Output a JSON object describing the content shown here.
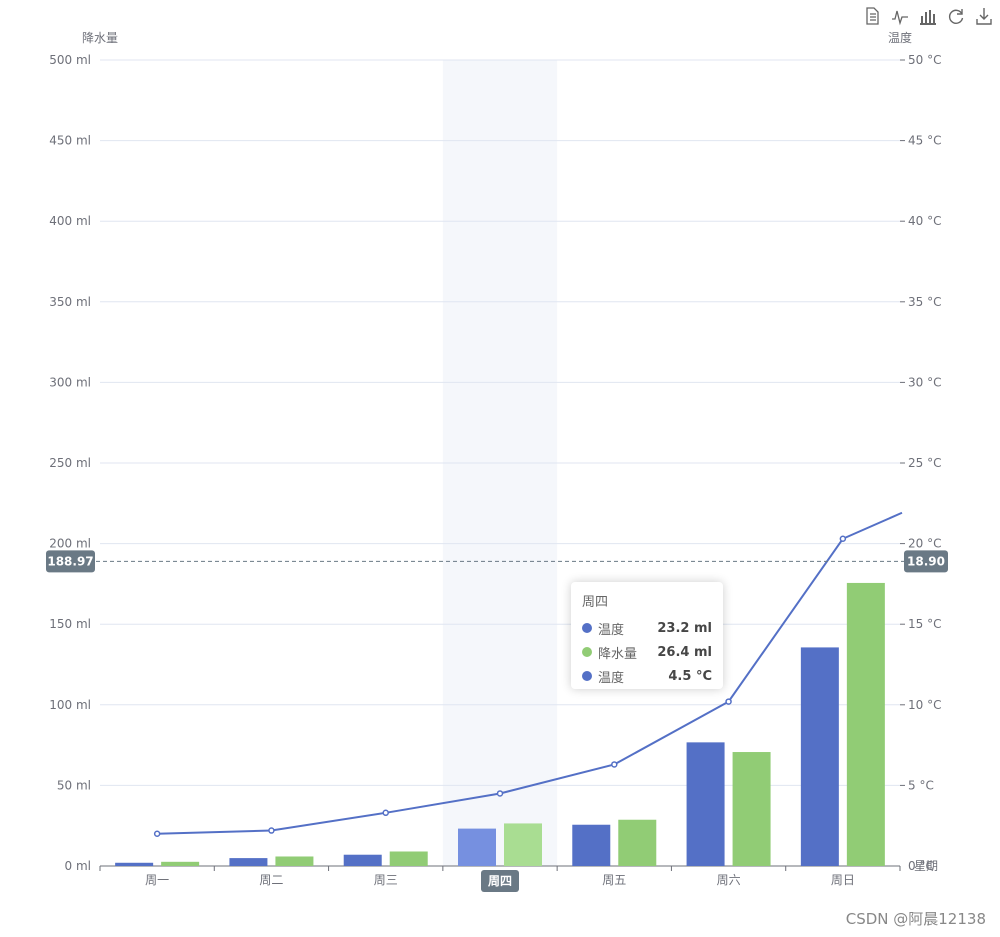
{
  "toolbox": {
    "icons": [
      "data-view-icon",
      "line-chart-icon",
      "bar-chart-icon",
      "restore-icon",
      "save-image-icon"
    ]
  },
  "chart_data": {
    "type": "bar",
    "categories": [
      "周一",
      "周二",
      "周三",
      "周四",
      "周五",
      "周六",
      "周日"
    ],
    "series": [
      {
        "name": "温度",
        "type": "bar",
        "axis": "left",
        "color": "#5470c6",
        "values": [
          2.0,
          4.9,
          7.0,
          23.2,
          25.6,
          76.7,
          135.6
        ]
      },
      {
        "name": "降水量",
        "type": "bar",
        "axis": "left",
        "color": "#91cc75",
        "values": [
          2.6,
          5.9,
          9.0,
          26.4,
          28.7,
          70.7,
          175.6
        ]
      },
      {
        "name": "温度",
        "type": "line",
        "axis": "right",
        "color": "#5470c6",
        "values": [
          2.0,
          2.2,
          3.3,
          4.5,
          6.3,
          10.2,
          20.3
        ]
      }
    ],
    "left_axis": {
      "name": "降水量",
      "min": 0,
      "max": 500,
      "interval": 50,
      "unit": " ml"
    },
    "right_axis": {
      "name": "温度",
      "min": 0,
      "max": 50,
      "interval": 5,
      "unit": " °C"
    },
    "x_axis_name": "星期",
    "highlighted_category": "周四",
    "crosshair": {
      "left_label": "188.97",
      "right_label": "18.90"
    },
    "tooltip": {
      "title": "周四",
      "rows": [
        {
          "name": "温度",
          "value": "23.2 ml",
          "color": "#5470c6"
        },
        {
          "name": "降水量",
          "value": "26.4 ml",
          "color": "#91cc75"
        },
        {
          "name": "温度",
          "value": "4.5 °C",
          "color": "#5470c6"
        }
      ]
    },
    "grid": true
  },
  "watermark": "CSDN @阿晨12138"
}
